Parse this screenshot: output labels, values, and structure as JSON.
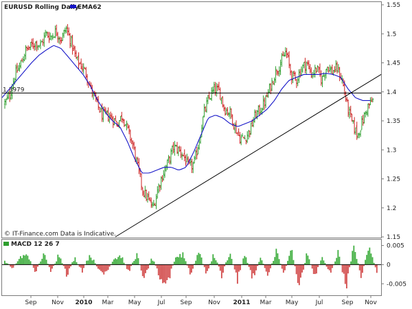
{
  "chart_data": [
    {
      "type": "candlestick",
      "title": "EURUSD Rolling Daily",
      "legend": [
        {
          "name": "EMA62",
          "color": "#1515c8"
        }
      ],
      "reference_label": "1.3979",
      "reference_level": 1.3979,
      "footer": "© IT-Finance.com Data is Indicative.",
      "ylim": [
        1.15,
        1.55
      ],
      "yticks": [
        "1.55",
        "1.5",
        "1.45",
        "1.4",
        "1.35",
        "1.3",
        "1.25",
        "1.2",
        "1.15"
      ],
      "xticks": [
        "Sep",
        "Nov",
        "2010",
        "Mar",
        "May",
        "Jul",
        "Sep",
        "Nov",
        "2011",
        "Mar",
        "May",
        "Jul",
        "Sep",
        "Nov"
      ],
      "colors": {
        "up": "#2e9e2e",
        "down": "#cc2020",
        "ema": "#1515c8",
        "line": "#000000"
      },
      "price_anchors": [
        1.38,
        1.395,
        1.43,
        1.445,
        1.47,
        1.478,
        1.485,
        1.48,
        1.5,
        1.495,
        1.505,
        1.49,
        1.51,
        1.485,
        1.455,
        1.445,
        1.43,
        1.4,
        1.38,
        1.36,
        1.36,
        1.355,
        1.345,
        1.36,
        1.335,
        1.31,
        1.27,
        1.23,
        1.215,
        1.2,
        1.235,
        1.26,
        1.28,
        1.305,
        1.3,
        1.29,
        1.27,
        1.275,
        1.315,
        1.365,
        1.39,
        1.405,
        1.4,
        1.37,
        1.365,
        1.34,
        1.32,
        1.32,
        1.335,
        1.36,
        1.37,
        1.385,
        1.41,
        1.435,
        1.45,
        1.47,
        1.43,
        1.42,
        1.44,
        1.45,
        1.43,
        1.44,
        1.42,
        1.445,
        1.435,
        1.44,
        1.42,
        1.375,
        1.345,
        1.325,
        1.35,
        1.375,
        1.385
      ],
      "ema_anchors": [
        1.39,
        1.405,
        1.42,
        1.435,
        1.45,
        1.463,
        1.472,
        1.48,
        1.475,
        1.46,
        1.445,
        1.43,
        1.41,
        1.385,
        1.365,
        1.35,
        1.34,
        1.315,
        1.285,
        1.26,
        1.26,
        1.265,
        1.27,
        1.27,
        1.265,
        1.27,
        1.295,
        1.325,
        1.355,
        1.36,
        1.355,
        1.345,
        1.34,
        1.345,
        1.35,
        1.36,
        1.37,
        1.385,
        1.405,
        1.42,
        1.425,
        1.43,
        1.43,
        1.43,
        1.432,
        1.43,
        1.425,
        1.405,
        1.39,
        1.385,
        1.385
      ],
      "trendline": {
        "from": {
          "date": "May 2010",
          "value": 1.15
        },
        "to": {
          "date": "Nov 2011",
          "value": 1.43
        }
      }
    },
    {
      "type": "bar",
      "title": "MACD 12 26 7",
      "legend": [
        {
          "name": "MACD 12 26 7",
          "color": "#2e9e2e"
        }
      ],
      "ylim": [
        -0.008,
        0.006
      ],
      "yticks": [
        "0.005",
        "0",
        "-0.005"
      ],
      "macd_anchors": [
        0.001,
        -0.001,
        0.002,
        0.0025,
        -0.002,
        0.003,
        -0.002,
        0.003,
        -0.003,
        0.002,
        -0.002,
        0.003,
        -0.001,
        -0.003,
        0.0015,
        0.0025,
        -0.002,
        0.003,
        -0.004,
        0.002,
        -0.003,
        -0.005,
        0.002,
        0.003,
        -0.003,
        0.004,
        -0.0025,
        0.003,
        -0.003,
        0.0035,
        -0.004,
        0.003,
        -0.004,
        0.002,
        -0.003,
        0.004,
        -0.0025,
        0.004,
        -0.006,
        0.003,
        -0.003,
        0.002,
        -0.003,
        0.0035,
        -0.006,
        0.005,
        -0.003,
        0.005,
        -0.002
      ]
    }
  ]
}
